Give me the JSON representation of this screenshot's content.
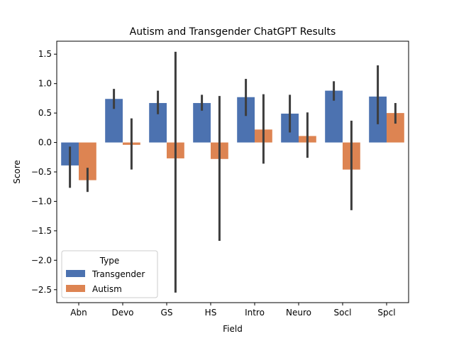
{
  "chart_data": {
    "type": "bar",
    "title": "Autism and Transgender ChatGPT Results",
    "xlabel": "Field",
    "ylabel": "Score",
    "categories": [
      "Abn",
      "Devo",
      "GS",
      "HS",
      "Intro",
      "Neuro",
      "Socl",
      "Spcl"
    ],
    "ylim": [
      -2.72,
      1.72
    ],
    "yticks": [
      -2.5,
      -2.0,
      -1.5,
      -1.0,
      -0.5,
      0.0,
      0.5,
      1.0,
      1.5
    ],
    "ytick_labels": [
      "−2.5",
      "−2.0",
      "−1.5",
      "−1.0",
      "−0.5",
      "0.0",
      "0.5",
      "1.0",
      "1.5"
    ],
    "grid": false,
    "legend": {
      "title": "Type",
      "position": "lower-left"
    },
    "series": [
      {
        "name": "Transgender",
        "color": "#4c72b0",
        "values": [
          -0.39,
          0.74,
          0.67,
          0.67,
          0.77,
          0.49,
          0.88,
          0.78
        ],
        "error_low": [
          -0.77,
          0.57,
          0.48,
          0.54,
          0.45,
          0.17,
          0.71,
          0.31
        ],
        "error_high": [
          -0.07,
          0.91,
          0.88,
          0.81,
          1.08,
          0.81,
          1.04,
          1.31
        ]
      },
      {
        "name": "Autism",
        "color": "#dd8452",
        "values": [
          -0.64,
          -0.04,
          -0.27,
          -0.28,
          0.22,
          0.11,
          -0.46,
          0.5
        ],
        "error_low": [
          -0.84,
          -0.46,
          -2.55,
          -1.67,
          -0.36,
          -0.26,
          -1.15,
          0.32
        ],
        "error_high": [
          -0.43,
          0.41,
          1.54,
          0.79,
          0.82,
          0.51,
          0.37,
          0.67
        ]
      }
    ]
  }
}
